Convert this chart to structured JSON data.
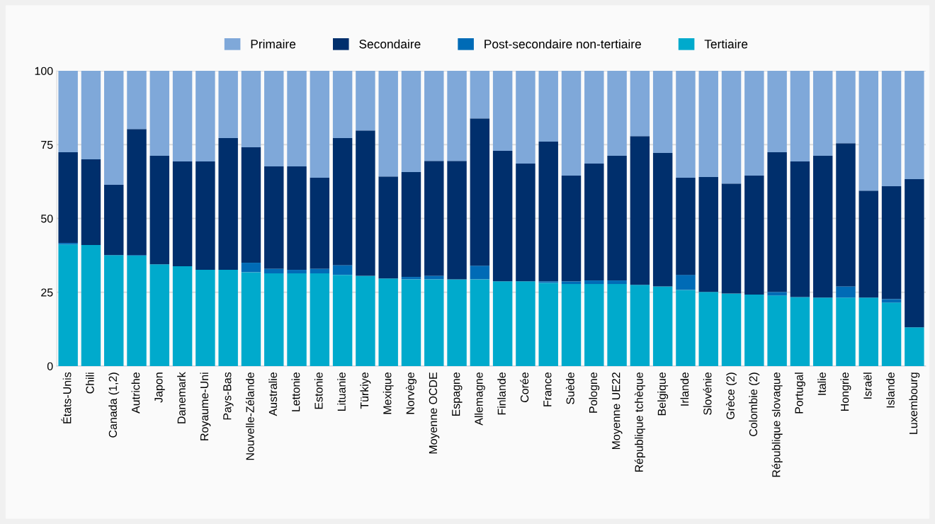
{
  "chart_data": {
    "type": "bar",
    "stacked": true,
    "categories": [
      "États-Unis",
      "Chili",
      "Canada (1,2)",
      "Autriche",
      "Japon",
      "Danemark",
      "Royaume-Uni",
      "Pays-Bas",
      "Nouvelle-Zélande",
      "Australie",
      "Lettonie",
      "Estonie",
      "Lituanie",
      "Türkiye",
      "Mexique",
      "Norvège",
      "Moyenne OCDE",
      "Espagne",
      "Allemagne",
      "Finlande",
      "Corée",
      "France",
      "Suède",
      "Pologne",
      "Moyenne UE22",
      "République tchèque",
      "Belgique",
      "Irlande",
      "Slovénie",
      "Grèce (2)",
      "Colombie (2)",
      "République slovaque",
      "Portugal",
      "Italie",
      "Hongrie",
      "Israël",
      "Islande",
      "Luxembourg"
    ],
    "series": [
      {
        "name": "Tertiaire",
        "color": "#00aacc",
        "values": [
          41.2,
          41.0,
          37.6,
          37.4,
          34.5,
          33.8,
          32.6,
          32.6,
          31.8,
          31.4,
          31.4,
          31.4,
          30.9,
          30.6,
          29.7,
          29.4,
          29.4,
          29.4,
          29.4,
          28.7,
          28.7,
          28.2,
          27.8,
          27.8,
          27.8,
          27.5,
          27.0,
          25.8,
          25.1,
          24.6,
          24.2,
          23.9,
          23.4,
          23.2,
          23.2,
          23.2,
          21.5,
          13.1
        ]
      },
      {
        "name": "Post-secondaire non-tertiaire",
        "color": "#006bb6",
        "values": [
          0.5,
          null,
          null,
          0.2,
          null,
          null,
          null,
          null,
          3.2,
          1.6,
          1.2,
          1.6,
          3.3,
          null,
          null,
          0.8,
          1.2,
          null,
          4.6,
          null,
          null,
          0.5,
          0.9,
          1.2,
          1.2,
          null,
          null,
          5.1,
          null,
          null,
          null,
          1.2,
          null,
          null,
          3.8,
          null,
          1.2,
          null
        ]
      },
      {
        "name": "Secondaire",
        "color": "#002f6c",
        "values": [
          30.7,
          29.0,
          23.8,
          42.7,
          36.7,
          35.5,
          36.7,
          44.6,
          39.1,
          34.6,
          35.0,
          30.8,
          43.0,
          49.2,
          34.5,
          35.5,
          38.9,
          40.1,
          49.9,
          44.2,
          39.9,
          47.3,
          35.8,
          39.6,
          42.2,
          50.4,
          45.2,
          32.9,
          38.9,
          37.2,
          40.3,
          47.3,
          45.9,
          48.0,
          48.5,
          36.2,
          38.2,
          50.2
        ]
      },
      {
        "name": "Primaire",
        "color": "#7fa8d9",
        "values": [
          27.6,
          30.0,
          38.6,
          19.7,
          28.8,
          30.7,
          30.7,
          22.8,
          25.9,
          32.4,
          32.4,
          36.2,
          22.8,
          20.2,
          35.8,
          34.3,
          30.5,
          30.5,
          16.1,
          27.1,
          31.4,
          24.0,
          35.5,
          31.4,
          28.8,
          22.1,
          27.8,
          36.2,
          36.0,
          38.2,
          35.5,
          27.6,
          30.7,
          28.8,
          24.5,
          40.6,
          39.1,
          36.7
        ]
      }
    ],
    "ylim": [
      0,
      100
    ],
    "yticks": [
      0,
      25,
      50,
      75,
      100
    ],
    "grid": "y",
    "legend": "top"
  }
}
